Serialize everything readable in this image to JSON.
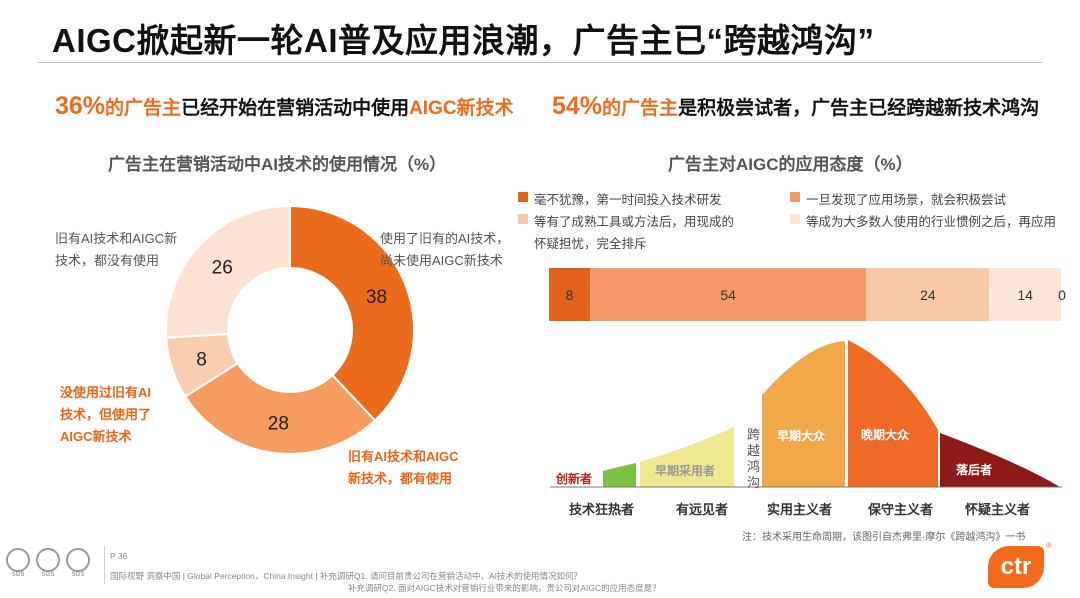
{
  "title": "AIGC掀起新一轮AI普及应用浪潮，广告主已“跨越鸿沟”",
  "left_headline": {
    "pct": "36%",
    "org": "的广告主",
    "text": "已经开始在营销活动中使用",
    "highlight": "AIGC新技术"
  },
  "right_headline": {
    "pct": "54%",
    "org": "的广告主",
    "text": "是积极尝试者，广告主已经跨越新技术鸿沟"
  },
  "donut": {
    "title": "广告主在营销活动中AI技术的使用情况（%）",
    "labels": {
      "top_left": [
        "旧有AI技术和AIGC新",
        "技术，都没有使用"
      ],
      "top_right": [
        "使用了旧有的AI技术，",
        "尚未使用AIGC新技术"
      ],
      "mid_left": [
        "没使用过旧有AI",
        "技术，但使用了",
        "AIGC新技术"
      ],
      "bottom_right": [
        "旧有AI技术和AIGC",
        "新技术，都有使用"
      ]
    }
  },
  "attitude": {
    "title": "广告主对AIGC的应用态度（%）",
    "legend": [
      {
        "text": "毫不犹豫，第一时间投入技术研发",
        "color": "#e3621b"
      },
      {
        "text": "一旦发现了应用场景，就会积极尝试",
        "color": "#f39a67"
      },
      {
        "text": "等有了成熟工具或方法后，用现成的",
        "color": "#f8c9a8"
      },
      {
        "text": "等成为大多数人使用的行业惯例之后，再应用",
        "color": "#fbe6d8"
      },
      {
        "text": "怀疑担忧，完全排斥",
        "color": "#ffffff"
      }
    ]
  },
  "curve": {
    "segments": {
      "innovators": "创新者",
      "early_adopters": "早期采用者",
      "chasm": [
        "跨",
        "越",
        "鸿",
        "沟"
      ],
      "early_majority": "早期大众",
      "late_majority": "晚期大众",
      "laggards": "落后者"
    },
    "categories": [
      "技术狂热者",
      "有远见者",
      "实用主义者",
      "保守主义者",
      "怀疑主义者"
    ],
    "note": "注：技术采用生命周期，该图引自杰弗里·摩尔《跨越鸿沟》一书"
  },
  "footer": {
    "page": "P 36",
    "source": "国际视野  洞察中国 |  Global Perception，China Insight | 补充调研Q1. 请问目前贵公司在营销活动中，AI技术的使用情况如何？",
    "source2": "补充调研Q2. 面对AIGC技术对营销行业带来的影响，贵公司对AIGC的应用态度是？",
    "seal_text": "SGS",
    "logo_text": "ctr",
    "logo_mark": "®"
  },
  "chart_data": [
    {
      "type": "pie",
      "title": "广告主在营销活动中AI技术的使用情况（%）",
      "categories": [
        "使用了旧有的AI技术，尚未使用AIGC新技术",
        "旧有AI技术和AIGC新技术，都有使用",
        "没使用过旧有AI技术，但使用了AIGC新技术",
        "旧有AI技术和AIGC新技术，都没有使用"
      ],
      "values": [
        38,
        28,
        8,
        26
      ],
      "colors": [
        "#ea6b1c",
        "#f59c60",
        "#f9cdb0",
        "#fbe2d2"
      ]
    },
    {
      "type": "bar",
      "stacked": true,
      "orientation": "horizontal",
      "title": "广告主对AIGC的应用态度（%）",
      "categories": [
        "毫不犹豫，第一时间投入技术研发",
        "一旦发现了应用场景，就会积极尝试",
        "等有了成熟工具或方法后，用现成的",
        "等成为大多数人使用的行业惯例之后，再应用",
        "怀疑担忧，完全排斥"
      ],
      "values": [
        8,
        54,
        24,
        14,
        0
      ],
      "colors": [
        "#e3621b",
        "#f39a67",
        "#f8c9a8",
        "#fbe6d8",
        "#ffffff"
      ]
    }
  ]
}
